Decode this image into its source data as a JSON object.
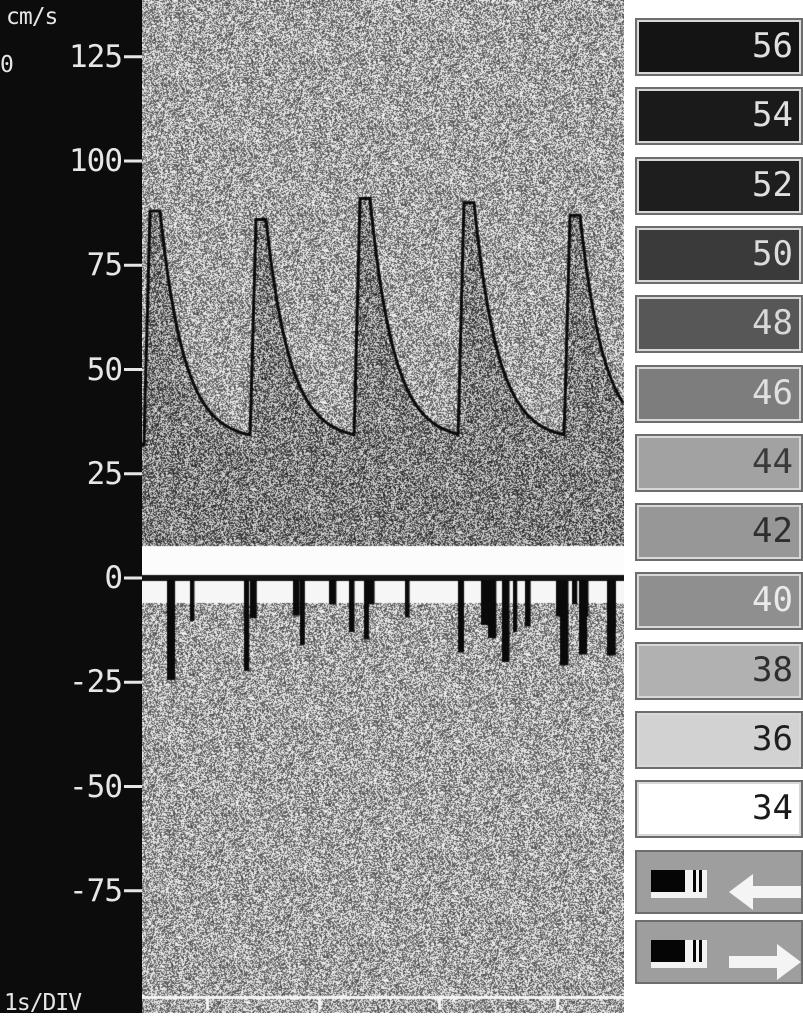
{
  "display": {
    "unit_label": "cm/s",
    "zero_mark": "0",
    "time_label": "1s/DIV"
  },
  "velocity_axis": {
    "ticks": [
      "125",
      "100",
      "75",
      "50",
      "25",
      "0",
      "-25",
      "-50",
      "-75"
    ]
  },
  "intensity_scale": {
    "levels": [
      "56",
      "54",
      "52",
      "50",
      "48",
      "46",
      "44",
      "42",
      "40",
      "38",
      "36",
      "34"
    ],
    "fill_colors": [
      "#141414",
      "#1a1a1a",
      "#1e1e1e",
      "#3a3a3a",
      "#575757",
      "#7d7d7d",
      "#a2a2a2",
      "#979797",
      "#8f8f8f",
      "#b1b1b1",
      "#d2d2d2",
      "#ffffff"
    ],
    "text_colors": [
      "#e0e0e0",
      "#e0e0e0",
      "#e0e0e0",
      "#dcdcdc",
      "#d8d8d8",
      "#e0e0e0",
      "#3a3a3a",
      "#2e2e2e",
      "#eaeaea",
      "#2e2e2e",
      "#1e1e1e",
      "#1a1a1a"
    ]
  },
  "direction_controls": [
    {
      "icon": "arrow-left-icon"
    },
    {
      "icon": "arrow-right-icon"
    }
  ]
}
